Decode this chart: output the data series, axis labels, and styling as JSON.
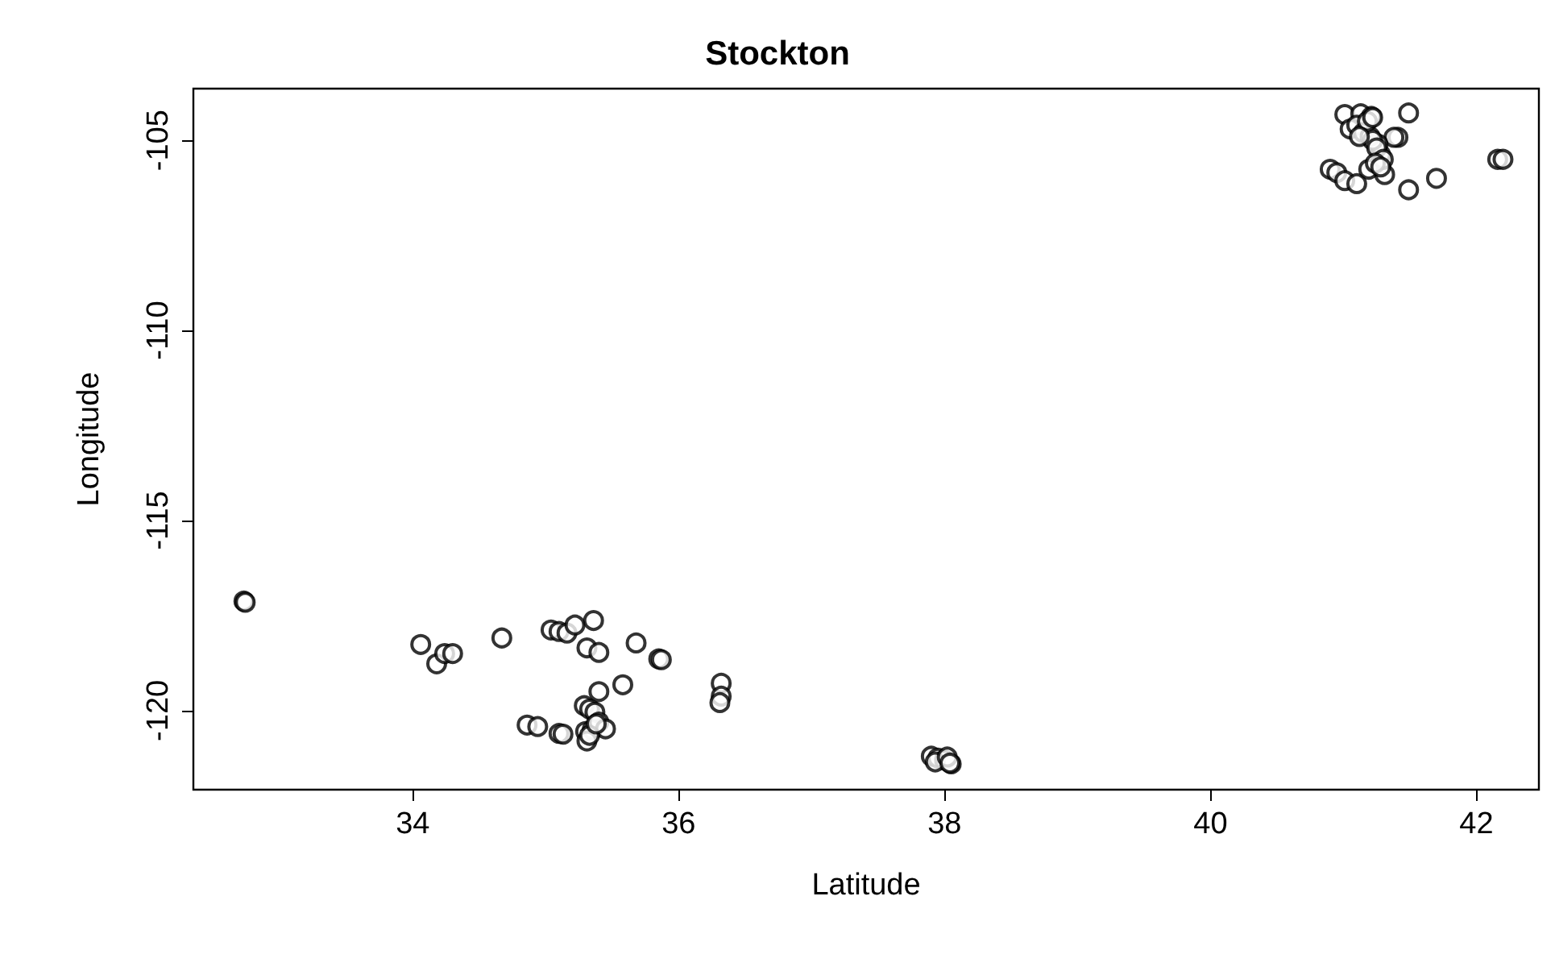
{
  "chart_data": {
    "type": "scatter",
    "title": "Stockton",
    "xlabel": "Latitude",
    "ylabel": "Longitude",
    "marker": "circle",
    "grid": false,
    "xlim": [
      32.35,
      42.47
    ],
    "ylim": [
      -122.08,
      -103.64
    ],
    "xticks": [
      34,
      36,
      38,
      40,
      42
    ],
    "yticks": [
      -120,
      -115,
      -110,
      -105
    ],
    "series": [
      {
        "color": "#000000",
        "x": [
          32.73,
          32.74,
          34.06,
          34.18,
          34.24,
          34.3,
          34.67,
          35.04,
          35.1,
          35.16,
          35.22,
          35.36,
          35.31,
          35.4,
          35.68,
          35.85,
          35.87,
          35.4,
          35.58,
          36.32,
          36.32,
          36.31,
          34.86,
          34.94,
          35.1,
          35.13,
          35.29,
          35.33,
          35.37,
          35.3,
          35.35,
          35.4,
          35.45,
          35.31,
          35.33,
          35.38,
          37.9,
          37.95,
          38.0,
          38.05,
          37.93,
          38.02,
          38.04,
          41.01,
          41.13,
          41.21,
          41.49,
          41.41,
          41.38,
          40.9,
          40.95,
          41.01,
          41.1,
          41.19,
          41.31,
          41.28,
          41.26,
          41.49,
          41.7,
          42.16,
          42.2,
          41.05,
          41.1,
          41.15,
          41.2,
          41.22,
          41.25,
          41.3,
          41.18,
          41.12,
          41.24,
          41.28,
          41.22
        ],
        "values": [
          -117.12,
          -117.15,
          -118.26,
          -118.77,
          -118.5,
          -118.5,
          -118.09,
          -117.88,
          -117.92,
          -117.96,
          -117.75,
          -117.63,
          -118.35,
          -118.47,
          -118.22,
          -118.64,
          -118.66,
          -119.5,
          -119.32,
          -119.28,
          -119.62,
          -119.79,
          -120.38,
          -120.42,
          -120.6,
          -120.62,
          -119.87,
          -119.96,
          -120.04,
          -120.55,
          -120.5,
          -120.3,
          -120.48,
          -120.8,
          -120.65,
          -120.35,
          -121.2,
          -121.25,
          -121.3,
          -121.4,
          -121.35,
          -121.22,
          -121.38,
          -104.32,
          -104.3,
          -104.37,
          -104.28,
          -104.92,
          -104.92,
          -105.76,
          -105.85,
          -106.06,
          -106.14,
          -105.76,
          -105.9,
          -105.38,
          -105.1,
          -106.3,
          -106.0,
          -105.5,
          -105.5,
          -104.7,
          -104.6,
          -104.8,
          -104.9,
          -105.0,
          -105.2,
          -105.5,
          -104.5,
          -104.9,
          -105.6,
          -105.7,
          -104.4
        ]
      }
    ]
  }
}
